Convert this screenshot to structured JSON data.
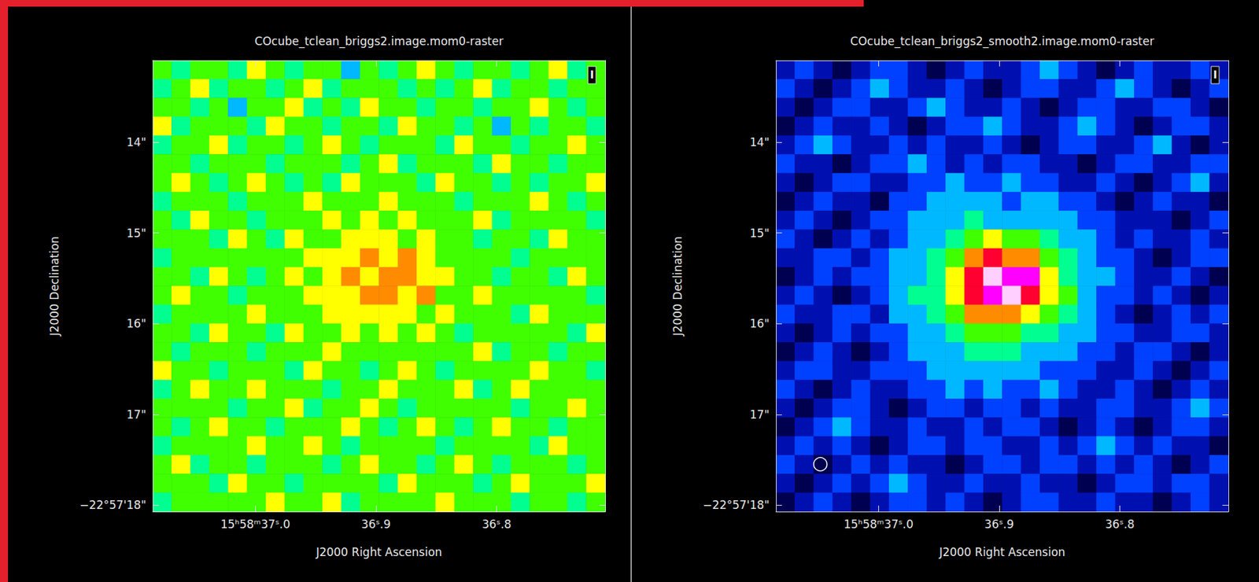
{
  "chart_data": [
    {
      "type": "heatmap",
      "title": "COcube_tclean_briggs2.image.mom0-raster",
      "x_label": "J2000 Right Ascension",
      "y_label": "J2000 Declination",
      "annotation": "I",
      "xlim": [
        37.085,
        36.71
      ],
      "xticks": [
        {
          "value": 37.0,
          "label": "15ʰ58ᵐ37ˢ.0"
        },
        {
          "value": 36.9,
          "label": "36ˢ.9"
        },
        {
          "value": 36.8,
          "label": "36ˢ.8"
        }
      ],
      "ylim": [
        18.07,
        13.1
      ],
      "yticks": [
        {
          "value": 14,
          "label": "14\""
        },
        {
          "value": 15,
          "label": "15\""
        },
        {
          "value": 16,
          "label": "16\""
        },
        {
          "value": 17,
          "label": "17\""
        },
        {
          "value": 18,
          "label": "−22°57'18\""
        }
      ],
      "value_range": [
        0,
        10
      ],
      "cells": [
        [
          5,
          4,
          5,
          5,
          4,
          6,
          5,
          4,
          5,
          5,
          3,
          5,
          4,
          5,
          6,
          5,
          4,
          5,
          5,
          4,
          5,
          6,
          4,
          5
        ],
        [
          4,
          5,
          6,
          4,
          5,
          5,
          4,
          5,
          6,
          4,
          5,
          5,
          5,
          4,
          5,
          4,
          5,
          6,
          4,
          5,
          5,
          4,
          5,
          5
        ],
        [
          5,
          5,
          4,
          5,
          3,
          5,
          5,
          6,
          4,
          5,
          4,
          6,
          5,
          5,
          4,
          5,
          5,
          4,
          5,
          5,
          6,
          5,
          4,
          5
        ],
        [
          6,
          4,
          5,
          5,
          5,
          4,
          6,
          5,
          5,
          4,
          5,
          5,
          4,
          6,
          5,
          5,
          4,
          5,
          3,
          5,
          4,
          5,
          5,
          4
        ],
        [
          4,
          5,
          5,
          6,
          4,
          5,
          5,
          4,
          5,
          6,
          5,
          4,
          5,
          5,
          5,
          4,
          6,
          5,
          5,
          4,
          5,
          5,
          6,
          5
        ],
        [
          5,
          5,
          4,
          5,
          5,
          5,
          4,
          5,
          5,
          5,
          4,
          5,
          6,
          4,
          5,
          5,
          5,
          4,
          6,
          5,
          5,
          4,
          5,
          5
        ],
        [
          5,
          6,
          5,
          4,
          5,
          6,
          5,
          4,
          5,
          4,
          6,
          5,
          5,
          5,
          4,
          6,
          5,
          5,
          4,
          5,
          4,
          5,
          5,
          6
        ],
        [
          4,
          5,
          5,
          5,
          4,
          5,
          5,
          5,
          6,
          5,
          5,
          5,
          6,
          5,
          5,
          5,
          4,
          5,
          5,
          5,
          6,
          5,
          4,
          5
        ],
        [
          5,
          4,
          6,
          5,
          5,
          4,
          5,
          5,
          5,
          6,
          5,
          6,
          5,
          6,
          5,
          5,
          5,
          6,
          4,
          5,
          5,
          5,
          5,
          4
        ],
        [
          5,
          5,
          5,
          4,
          6,
          5,
          4,
          6,
          5,
          5,
          6,
          6,
          6,
          5,
          6,
          5,
          5,
          4,
          5,
          5,
          4,
          6,
          5,
          5
        ],
        [
          4,
          5,
          5,
          5,
          5,
          5,
          5,
          5,
          6,
          6,
          6,
          7,
          6,
          7,
          6,
          5,
          5,
          5,
          5,
          4,
          5,
          5,
          5,
          5
        ],
        [
          5,
          5,
          4,
          6,
          5,
          4,
          5,
          6,
          5,
          6,
          7,
          6,
          7,
          7,
          6,
          6,
          5,
          5,
          4,
          5,
          5,
          4,
          6,
          5
        ],
        [
          5,
          6,
          5,
          5,
          4,
          5,
          5,
          5,
          6,
          6,
          6,
          7,
          7,
          6,
          7,
          5,
          5,
          6,
          5,
          5,
          5,
          5,
          5,
          4
        ],
        [
          4,
          5,
          5,
          5,
          5,
          6,
          5,
          5,
          5,
          6,
          6,
          6,
          6,
          6,
          5,
          6,
          5,
          5,
          5,
          4,
          6,
          5,
          5,
          5
        ],
        [
          5,
          5,
          4,
          6,
          5,
          5,
          4,
          6,
          5,
          5,
          6,
          5,
          6,
          5,
          6,
          5,
          4,
          5,
          5,
          5,
          5,
          5,
          4,
          6
        ],
        [
          5,
          4,
          5,
          5,
          5,
          4,
          5,
          5,
          5,
          6,
          5,
          5,
          5,
          5,
          5,
          5,
          5,
          6,
          4,
          5,
          5,
          4,
          5,
          5
        ],
        [
          6,
          5,
          5,
          4,
          5,
          5,
          5,
          4,
          6,
          5,
          5,
          4,
          5,
          6,
          5,
          4,
          5,
          5,
          5,
          5,
          6,
          5,
          5,
          4
        ],
        [
          4,
          5,
          6,
          5,
          5,
          6,
          5,
          5,
          5,
          4,
          5,
          5,
          6,
          5,
          5,
          5,
          6,
          4,
          5,
          6,
          5,
          5,
          5,
          5
        ],
        [
          5,
          5,
          5,
          5,
          4,
          5,
          5,
          6,
          4,
          5,
          5,
          6,
          5,
          4,
          5,
          5,
          5,
          5,
          5,
          4,
          5,
          5,
          6,
          5
        ],
        [
          5,
          4,
          5,
          6,
          5,
          5,
          4,
          5,
          5,
          5,
          6,
          5,
          4,
          5,
          6,
          5,
          4,
          5,
          6,
          5,
          5,
          4,
          5,
          5
        ],
        [
          4,
          5,
          5,
          5,
          5,
          6,
          5,
          5,
          6,
          5,
          4,
          5,
          5,
          5,
          5,
          4,
          5,
          5,
          5,
          5,
          4,
          6,
          5,
          5
        ],
        [
          5,
          6,
          4,
          5,
          5,
          4,
          5,
          5,
          5,
          4,
          5,
          6,
          5,
          5,
          4,
          5,
          6,
          5,
          4,
          5,
          5,
          5,
          4,
          5
        ],
        [
          5,
          5,
          5,
          4,
          6,
          5,
          5,
          4,
          5,
          5,
          5,
          5,
          4,
          6,
          5,
          5,
          5,
          4,
          5,
          6,
          5,
          5,
          5,
          6
        ],
        [
          4,
          5,
          5,
          5,
          5,
          5,
          6,
          5,
          5,
          6,
          4,
          5,
          5,
          5,
          5,
          6,
          5,
          5,
          5,
          4,
          5,
          5,
          4,
          5
        ]
      ]
    },
    {
      "type": "heatmap",
      "title": "COcube_tclean_briggs2_smooth2.image.mom0-raster",
      "x_label": "J2000 Right Ascension",
      "y_label": "J2000 Declination",
      "annotation": "I",
      "xlim": [
        37.085,
        36.71
      ],
      "xticks": [
        {
          "value": 37.0,
          "label": "15ʰ58ᵐ37ˢ.0"
        },
        {
          "value": 36.9,
          "label": "36ˢ.9"
        },
        {
          "value": 36.8,
          "label": "36ˢ.8"
        }
      ],
      "ylim": [
        18.07,
        13.1
      ],
      "yticks": [
        {
          "value": 14,
          "label": "14\""
        },
        {
          "value": 15,
          "label": "15\""
        },
        {
          "value": 16,
          "label": "16\""
        },
        {
          "value": 17,
          "label": "17\""
        },
        {
          "value": 18,
          "label": "−22°57'18\""
        }
      ],
      "value_range": [
        0,
        10
      ],
      "cells": [
        [
          1,
          2,
          1,
          0,
          1,
          2,
          2,
          1,
          0,
          1,
          2,
          1,
          1,
          2,
          3,
          2,
          1,
          0,
          1,
          2,
          1,
          1,
          2,
          1
        ],
        [
          2,
          1,
          0,
          1,
          2,
          3,
          2,
          1,
          1,
          2,
          1,
          0,
          1,
          2,
          2,
          1,
          1,
          2,
          3,
          2,
          1,
          0,
          1,
          2
        ],
        [
          1,
          0,
          1,
          2,
          2,
          1,
          1,
          2,
          3,
          2,
          1,
          1,
          2,
          1,
          0,
          1,
          2,
          2,
          1,
          1,
          2,
          2,
          1,
          0
        ],
        [
          0,
          1,
          2,
          1,
          1,
          2,
          1,
          0,
          1,
          2,
          2,
          3,
          2,
          1,
          1,
          2,
          3,
          2,
          1,
          0,
          1,
          2,
          2,
          1
        ],
        [
          1,
          2,
          3,
          2,
          1,
          1,
          2,
          1,
          2,
          1,
          1,
          2,
          1,
          0,
          1,
          2,
          2,
          1,
          1,
          2,
          3,
          1,
          0,
          1
        ],
        [
          2,
          1,
          1,
          0,
          1,
          2,
          2,
          3,
          2,
          1,
          2,
          1,
          2,
          2,
          1,
          1,
          0,
          1,
          2,
          2,
          1,
          1,
          2,
          2
        ],
        [
          1,
          0,
          1,
          2,
          2,
          1,
          1,
          2,
          2,
          3,
          2,
          2,
          3,
          2,
          2,
          1,
          1,
          2,
          1,
          0,
          1,
          2,
          3,
          1
        ],
        [
          0,
          1,
          2,
          1,
          1,
          0,
          2,
          2,
          3,
          3,
          3,
          3,
          2,
          3,
          3,
          2,
          2,
          1,
          0,
          1,
          2,
          1,
          1,
          0
        ],
        [
          1,
          2,
          1,
          0,
          1,
          2,
          2,
          3,
          3,
          3,
          4,
          3,
          3,
          3,
          3,
          3,
          2,
          2,
          1,
          1,
          1,
          0,
          1,
          2
        ],
        [
          2,
          1,
          0,
          1,
          2,
          1,
          2,
          3,
          3,
          4,
          5,
          6,
          5,
          5,
          4,
          3,
          3,
          2,
          1,
          2,
          1,
          1,
          2,
          1
        ],
        [
          1,
          1,
          2,
          2,
          1,
          2,
          3,
          3,
          4,
          5,
          7,
          8,
          7,
          7,
          5,
          4,
          3,
          2,
          2,
          1,
          0,
          1,
          2,
          2
        ],
        [
          0,
          1,
          2,
          1,
          2,
          2,
          3,
          3,
          4,
          6,
          8,
          10,
          9,
          9,
          6,
          4,
          3,
          3,
          2,
          1,
          1,
          2,
          1,
          0
        ],
        [
          1,
          2,
          1,
          0,
          1,
          2,
          3,
          4,
          4,
          6,
          8,
          9,
          10,
          8,
          6,
          5,
          3,
          2,
          2,
          1,
          2,
          1,
          0,
          1
        ],
        [
          2,
          1,
          1,
          2,
          2,
          1,
          3,
          3,
          4,
          5,
          7,
          7,
          7,
          6,
          5,
          4,
          3,
          2,
          1,
          0,
          1,
          2,
          1,
          2
        ],
        [
          1,
          0,
          1,
          2,
          1,
          2,
          2,
          3,
          3,
          4,
          5,
          5,
          5,
          4,
          4,
          3,
          3,
          2,
          2,
          1,
          1,
          2,
          2,
          1
        ],
        [
          0,
          1,
          2,
          1,
          0,
          1,
          2,
          3,
          3,
          3,
          4,
          4,
          4,
          3,
          3,
          3,
          2,
          2,
          1,
          2,
          2,
          1,
          0,
          1
        ],
        [
          1,
          2,
          2,
          1,
          1,
          2,
          2,
          2,
          3,
          3,
          3,
          3,
          3,
          3,
          2,
          2,
          2,
          1,
          1,
          2,
          1,
          0,
          1,
          2
        ],
        [
          2,
          1,
          0,
          1,
          2,
          1,
          1,
          2,
          2,
          3,
          2,
          3,
          2,
          2,
          3,
          2,
          1,
          1,
          2,
          1,
          0,
          1,
          2,
          1
        ],
        [
          1,
          0,
          1,
          2,
          2,
          1,
          0,
          1,
          2,
          2,
          1,
          2,
          2,
          1,
          2,
          1,
          1,
          2,
          2,
          1,
          1,
          2,
          3,
          2
        ],
        [
          0,
          1,
          2,
          3,
          2,
          1,
          1,
          2,
          1,
          1,
          2,
          1,
          2,
          2,
          1,
          0,
          1,
          2,
          1,
          0,
          1,
          2,
          2,
          1
        ],
        [
          1,
          2,
          1,
          2,
          1,
          0,
          1,
          2,
          2,
          1,
          2,
          2,
          1,
          1,
          2,
          1,
          2,
          3,
          2,
          1,
          2,
          1,
          1,
          0
        ],
        [
          2,
          1,
          0,
          1,
          2,
          1,
          2,
          1,
          1,
          0,
          1,
          2,
          2,
          1,
          2,
          2,
          1,
          2,
          1,
          2,
          1,
          0,
          1,
          2
        ],
        [
          1,
          0,
          1,
          2,
          1,
          2,
          3,
          2,
          1,
          1,
          2,
          1,
          1,
          2,
          1,
          1,
          0,
          1,
          2,
          2,
          1,
          2,
          2,
          1
        ],
        [
          0,
          1,
          2,
          1,
          0,
          1,
          2,
          2,
          1,
          2,
          1,
          0,
          1,
          2,
          2,
          1,
          1,
          2,
          1,
          1,
          0,
          1,
          2,
          1
        ]
      ]
    }
  ]
}
